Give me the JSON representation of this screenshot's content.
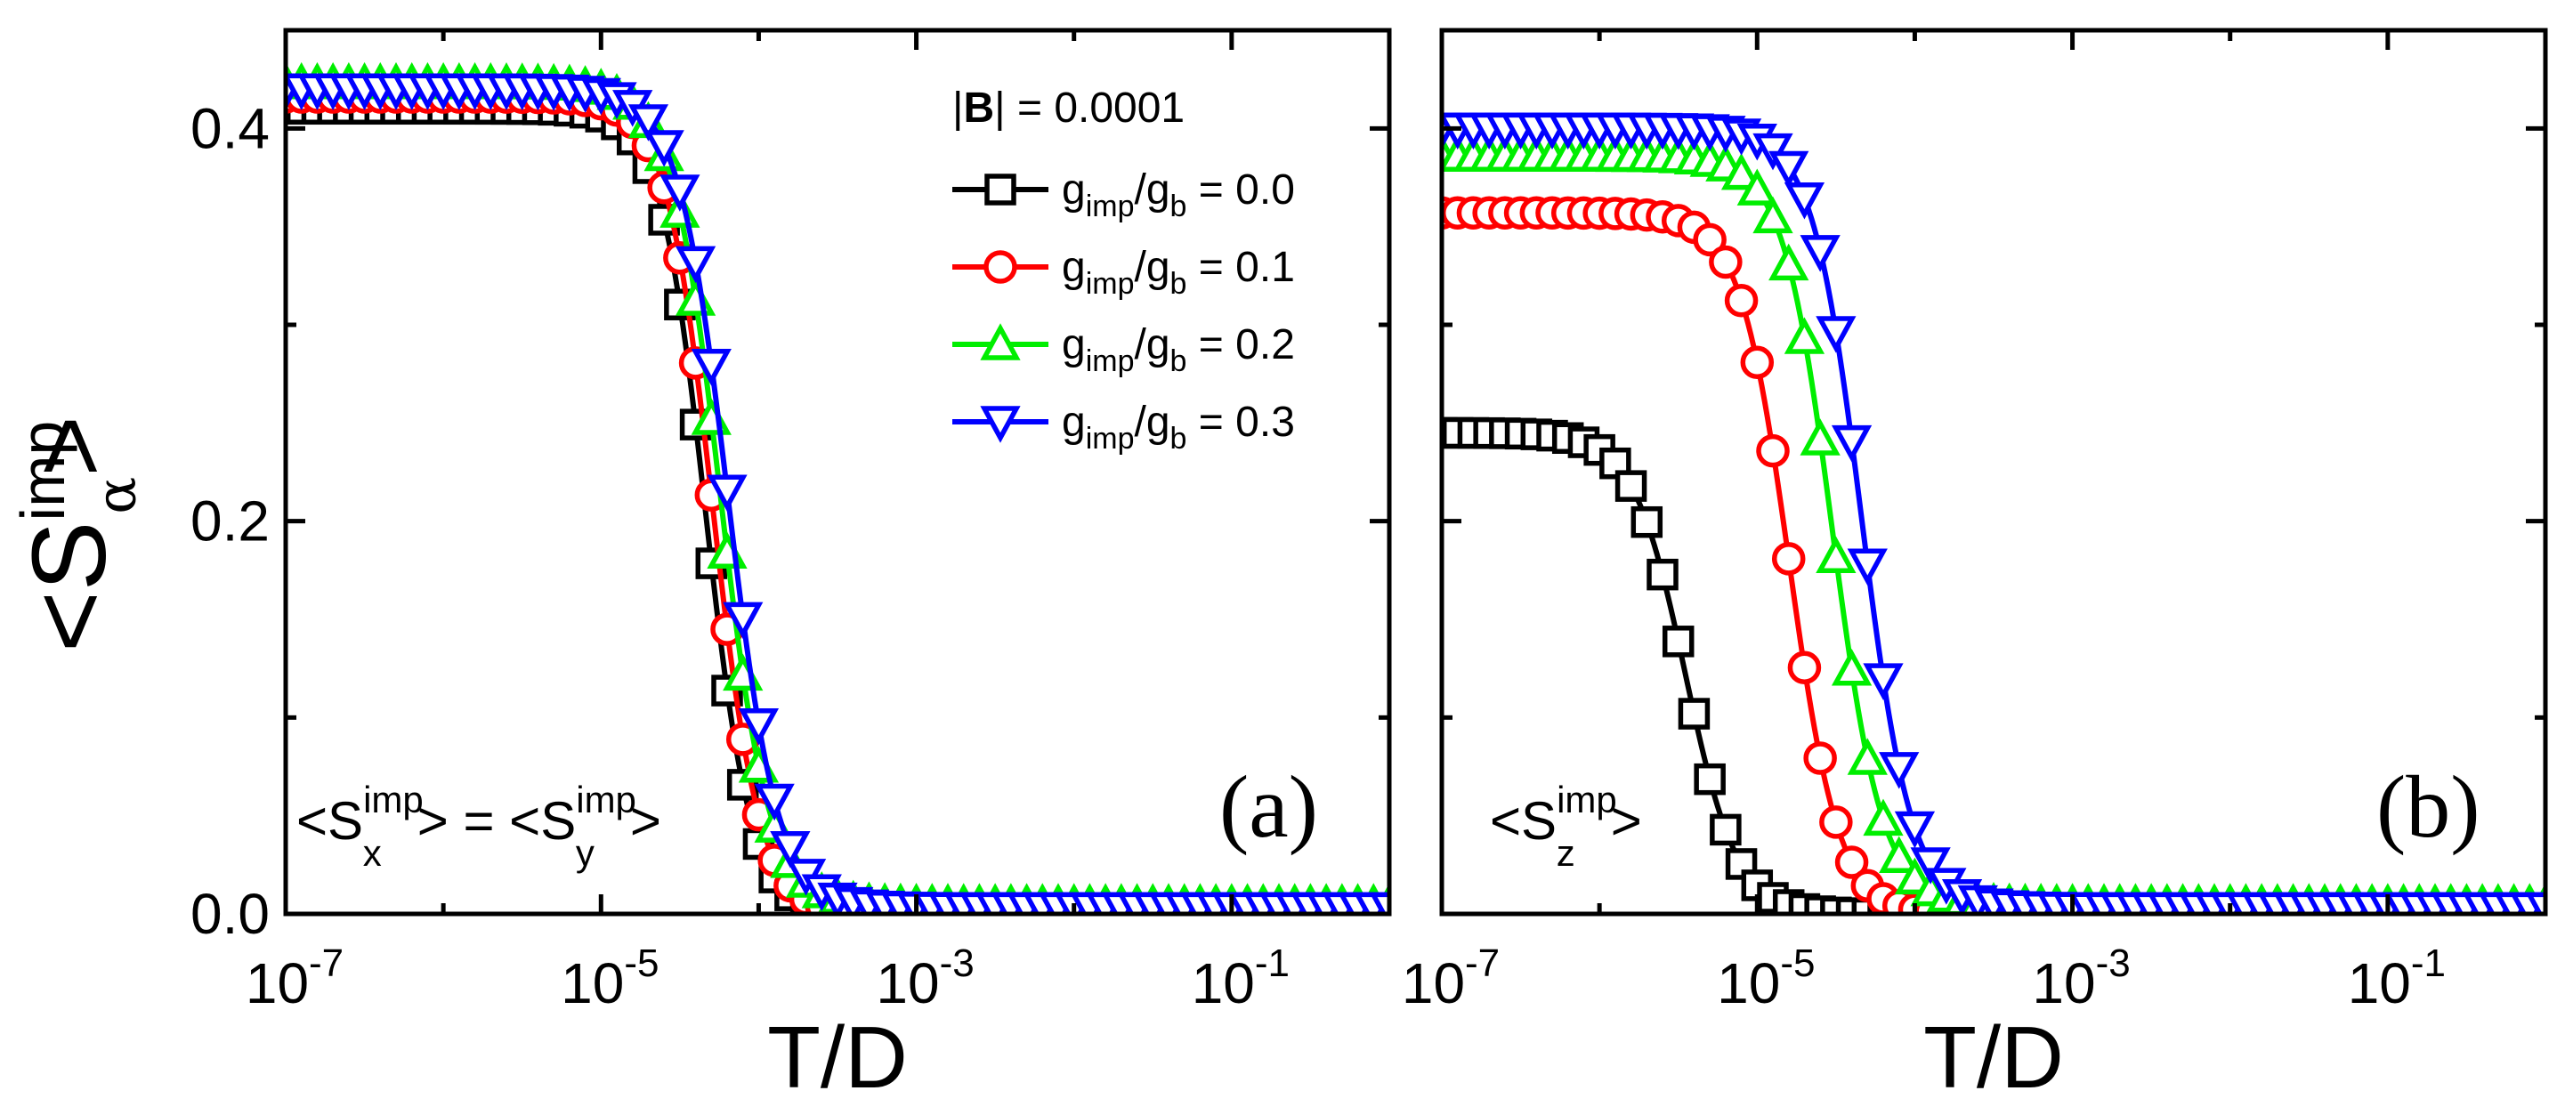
{
  "figure": {
    "ylabel_main": "<S",
    "ylabel_sup": "imp",
    "ylabel_sub": "α",
    "ylabel_close": ">"
  },
  "legend": {
    "field": "|B| = 0.0001",
    "field_pre": "|",
    "field_bold": "B",
    "field_post": "| = 0.0001",
    "entry_g": "g",
    "entry_sub_imp": "imp",
    "entry_slash": "/g",
    "entry_sub_b": "b",
    "entries": [
      {
        "value_text": " = 0.0",
        "color": "#000000",
        "marker": "square"
      },
      {
        "value_text": " = 0.1",
        "color": "#ff0000",
        "marker": "circle"
      },
      {
        "value_text": " = 0.2",
        "color": "#00ee00",
        "marker": "triangle-up"
      },
      {
        "value_text": " = 0.3",
        "color": "#0000ff",
        "marker": "triangle-down"
      }
    ]
  },
  "chart_data": [
    {
      "type": "line",
      "panel": "(a)",
      "annotation": {
        "lt": "<S",
        "x_sub": "x",
        "sup": "imp",
        "mid": "> = <S",
        "y_sub": "y",
        "gt": ">"
      },
      "xlabel": "T/D",
      "xscale": "log",
      "xlim": [
        1e-07,
        1
      ],
      "ylim": [
        0,
        0.45
      ],
      "xticks": [
        {
          "base": "10",
          "exp": "-7"
        },
        {
          "base": "10",
          "exp": "-5"
        },
        {
          "base": "10",
          "exp": "-3"
        },
        {
          "base": "10",
          "exp": "-1"
        }
      ],
      "xtick_values": [
        1e-07,
        1e-05,
        0.001,
        0.1
      ],
      "yticks": [
        "0.0",
        "0.2",
        "0.4"
      ],
      "ytick_values": [
        0.0,
        0.2,
        0.4
      ],
      "series": [
        {
          "name": "g_imp/g_b = 0.0",
          "color": "#000000",
          "marker": "square",
          "plateau": 0.41,
          "floor": 0.0,
          "x_half": 4.6e-05,
          "width": 0.33
        },
        {
          "name": "g_imp/g_b = 0.1",
          "color": "#ff0000",
          "marker": "circle",
          "plateau": 0.416,
          "floor": 0.0,
          "x_half": 5.1e-05,
          "width": 0.34
        },
        {
          "name": "g_imp/g_b = 0.2",
          "color": "#00ee00",
          "marker": "triangle-up",
          "plateau": 0.423,
          "floor": 0.005,
          "x_half": 5.7e-05,
          "width": 0.35
        },
        {
          "name": "g_imp/g_b = 0.3",
          "color": "#0000ff",
          "marker": "triangle-down",
          "plateau": 0.42,
          "floor": 0.003,
          "x_half": 6.4e-05,
          "width": 0.36
        }
      ]
    },
    {
      "type": "line",
      "panel": "(b)",
      "annotation": {
        "lt": "<S",
        "z_sub": "z",
        "sup": "imp",
        "gt": ">"
      },
      "xlabel": "T/D",
      "xscale": "log",
      "xlim": [
        1e-07,
        1
      ],
      "ylim": [
        0,
        0.45
      ],
      "xticks": [
        {
          "base": "10",
          "exp": "-7"
        },
        {
          "base": "10",
          "exp": "-5"
        },
        {
          "base": "10",
          "exp": "-3"
        },
        {
          "base": "10",
          "exp": "-1"
        }
      ],
      "xtick_values": [
        1e-07,
        1e-05,
        0.001,
        0.1
      ],
      "series": [
        {
          "name": "g_imp/g_b = 0.0",
          "color": "#000000",
          "marker": "square",
          "plateau": 0.245,
          "floor": 0.0,
          "x_half": 3.5e-06,
          "width": 0.38
        },
        {
          "name": "g_imp/g_b = 0.1",
          "color": "#ff0000",
          "marker": "circle",
          "plateau": 0.357,
          "floor": 0.0,
          "x_half": 1.6e-05,
          "width": 0.36
        },
        {
          "name": "g_imp/g_b = 0.2",
          "color": "#00ee00",
          "marker": "triangle-up",
          "plateau": 0.386,
          "floor": 0.005,
          "x_half": 3e-05,
          "width": 0.36
        },
        {
          "name": "g_imp/g_b = 0.3",
          "color": "#0000ff",
          "marker": "triangle-down",
          "plateau": 0.4,
          "floor": 0.003,
          "x_half": 4.6e-05,
          "width": 0.36
        }
      ]
    }
  ]
}
